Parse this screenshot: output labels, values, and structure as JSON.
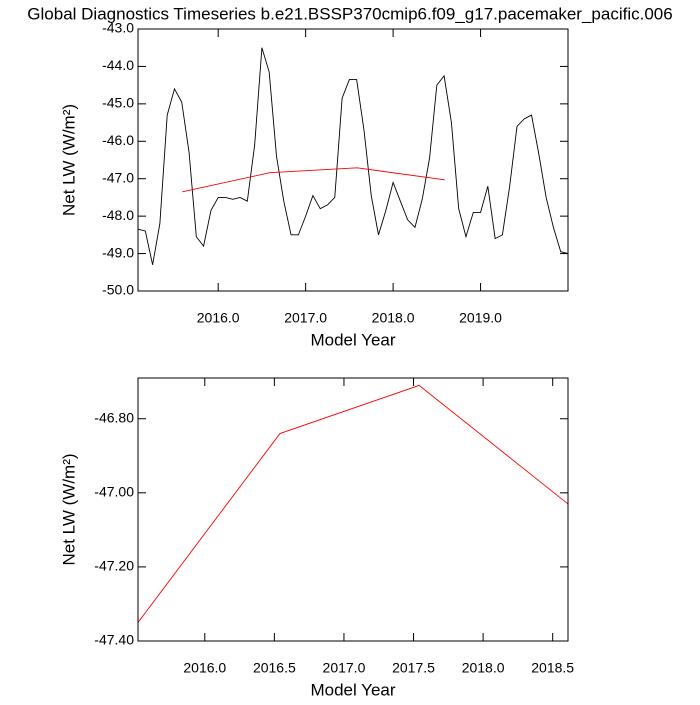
{
  "chart_data": [
    {
      "type": "line",
      "title": "Global Diagnostics Timeseries b.e21.BSSP370cmip6.f09_g17.pacemaker_pacific.006",
      "xlabel": "Model Year",
      "ylabel": "Net LW (W/m²)",
      "xlim": [
        2015.083,
        2020.0
      ],
      "ylim": [
        -50.0,
        -43.0
      ],
      "xticks": [
        {
          "value": 2016,
          "label": "2016.0"
        },
        {
          "value": 2017,
          "label": "2017.0"
        },
        {
          "value": 2018,
          "label": "2018.0"
        },
        {
          "value": 2019,
          "label": "2019.0"
        }
      ],
      "yticks": [
        {
          "value": -50,
          "label": "-50.0"
        },
        {
          "value": -49,
          "label": "-49.0"
        },
        {
          "value": -48,
          "label": "-48.0"
        },
        {
          "value": -47,
          "label": "-47.0"
        },
        {
          "value": -46,
          "label": "-46.0"
        },
        {
          "value": -45,
          "label": "-45.0"
        },
        {
          "value": -44,
          "label": "-44.0"
        },
        {
          "value": -43,
          "label": "-43.0"
        }
      ],
      "series": [
        {
          "color": "#000000",
          "x": [
            2015.083,
            2015.167,
            2015.25,
            2015.333,
            2015.417,
            2015.5,
            2015.583,
            2015.667,
            2015.75,
            2015.833,
            2015.917,
            2016.0,
            2016.083,
            2016.167,
            2016.25,
            2016.333,
            2016.417,
            2016.5,
            2016.583,
            2016.667,
            2016.75,
            2016.833,
            2016.917,
            2017.0,
            2017.083,
            2017.167,
            2017.25,
            2017.333,
            2017.417,
            2017.5,
            2017.583,
            2017.667,
            2017.75,
            2017.833,
            2017.917,
            2018.0,
            2018.083,
            2018.167,
            2018.25,
            2018.333,
            2018.417,
            2018.5,
            2018.583,
            2018.667,
            2018.75,
            2018.833,
            2018.917,
            2019.0,
            2019.083,
            2019.167,
            2019.25,
            2019.333,
            2019.417,
            2019.5,
            2019.583,
            2019.667,
            2019.75,
            2019.833,
            2019.917,
            2020.0
          ],
          "values": [
            -48.35,
            -48.4,
            -49.3,
            -48.2,
            -45.3,
            -44.6,
            -44.95,
            -46.3,
            -48.55,
            -48.8,
            -47.85,
            -47.5,
            -47.5,
            -47.55,
            -47.5,
            -47.6,
            -46.1,
            -43.5,
            -44.15,
            -46.4,
            -47.6,
            -48.5,
            -48.5,
            -48.0,
            -47.45,
            -47.8,
            -47.7,
            -47.5,
            -44.85,
            -44.35,
            -44.35,
            -45.7,
            -47.45,
            -48.5,
            -47.85,
            -47.1,
            -47.6,
            -48.1,
            -48.3,
            -47.55,
            -46.45,
            -44.5,
            -44.25,
            -45.5,
            -47.8,
            -48.55,
            -47.9,
            -47.9,
            -47.2,
            -48.6,
            -48.5,
            -47.2,
            -45.6,
            -45.4,
            -45.3,
            -46.35,
            -47.5,
            -48.3,
            -48.95,
            -49.0
          ]
        },
        {
          "color": "#ff0000",
          "x": [
            2015.59,
            2016.59,
            2017.59,
            2018.59
          ],
          "values": [
            -47.35,
            -46.84,
            -46.71,
            -47.03
          ]
        }
      ]
    },
    {
      "type": "line",
      "xlabel": "Model Year",
      "ylabel": "Net LW (W/m²)",
      "xlim": [
        2015.52,
        2018.61
      ],
      "ylim": [
        -47.4,
        -46.69
      ],
      "xticks": [
        {
          "value": 2016,
          "label": "2016.0"
        },
        {
          "value": 2016.5,
          "label": "2016.5"
        },
        {
          "value": 2017,
          "label": "2017.0"
        },
        {
          "value": 2017.5,
          "label": "2017.5"
        },
        {
          "value": 2018,
          "label": "2018.0"
        },
        {
          "value": 2018.5,
          "label": "2018.5"
        }
      ],
      "yticks": [
        {
          "value": -47.4,
          "label": "-47.40"
        },
        {
          "value": -47.2,
          "label": "-47.20"
        },
        {
          "value": -47.0,
          "label": "-47.00"
        },
        {
          "value": -46.8,
          "label": "-46.80"
        }
      ],
      "series": [
        {
          "color": "#ff0000",
          "x": [
            2015.52,
            2016.54,
            2017.54,
            2018.61
          ],
          "values": [
            -47.35,
            -46.84,
            -46.71,
            -47.03
          ]
        }
      ]
    }
  ]
}
